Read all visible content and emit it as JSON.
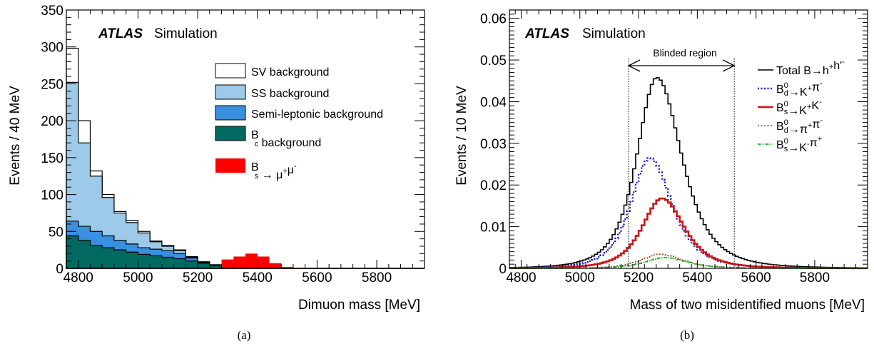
{
  "chart_data": [
    {
      "type": "area",
      "panel_caption": "(a)",
      "atlas_label": "ATLAS",
      "simulation_label": "Simulation",
      "xlabel": "Dimuon mass [MeV]",
      "ylabel": "Events / 40 MeV",
      "xlim": [
        4760,
        5960
      ],
      "ylim": [
        0,
        350
      ],
      "x_ticks": [
        4800,
        5000,
        5200,
        5400,
        5600,
        5800
      ],
      "y_ticks": [
        0,
        50,
        100,
        150,
        200,
        250,
        300,
        350
      ],
      "grid": false,
      "legend_position": "top-right",
      "bin_width": 40,
      "bin_edges_start": 4760,
      "series": [
        {
          "name": "SV background",
          "color": "#ffffff",
          "stacked_total": [
            298,
            200,
            132,
            100,
            77,
            65,
            50,
            37,
            31,
            25,
            16,
            9,
            5,
            3,
            2,
            1,
            1,
            0,
            0,
            0,
            0,
            0,
            0,
            0,
            0,
            0,
            0,
            0,
            0,
            0
          ]
        },
        {
          "name": "SS background",
          "color": "#9ecae9",
          "stacked_total": [
            252,
            170,
            125,
            96,
            75,
            62,
            48,
            36,
            30,
            24,
            15,
            8,
            4,
            3,
            2,
            1,
            1,
            0,
            0,
            0,
            0,
            0,
            0,
            0,
            0,
            0,
            0,
            0,
            0,
            0
          ]
        },
        {
          "name": "Semi-leptonic background",
          "color": "#3a8fe0",
          "stacked_total": [
            64,
            57,
            50,
            44,
            38,
            33,
            28,
            26,
            24,
            20,
            14,
            8,
            4,
            3,
            2,
            1,
            1,
            0,
            0,
            0,
            0,
            0,
            0,
            0,
            0,
            0,
            0,
            0,
            0,
            0
          ]
        },
        {
          "name": "B_c background",
          "name_parts": {
            "main": "B",
            "sub": "c",
            "tail": " background"
          },
          "color": "#006a60",
          "stacked_total": [
            44,
            38,
            31,
            28,
            25,
            22,
            19,
            17,
            15,
            13,
            10,
            7,
            4,
            3,
            2,
            1,
            1,
            0,
            0,
            0,
            0,
            0,
            0,
            0,
            0,
            0,
            0,
            0,
            0,
            0
          ]
        },
        {
          "name": "B_s → μ+μ-",
          "name_parts": {
            "main": "B",
            "sub": "s",
            "tail": " → μ",
            "sup1": "+",
            "mid": "μ",
            "sup2": "-"
          },
          "color": "#ff0000",
          "bins": [
            {
              "x": 5280,
              "value": 12
            },
            {
              "x": 5320,
              "value": 16
            },
            {
              "x": 5360,
              "value": 20
            },
            {
              "x": 5400,
              "value": 16
            },
            {
              "x": 5440,
              "value": 7
            },
            {
              "x": 5480,
              "value": 2
            }
          ]
        }
      ]
    },
    {
      "type": "line",
      "panel_caption": "(b)",
      "atlas_label": "ATLAS",
      "simulation_label": "Simulation",
      "xlabel": "Mass of two misidentified muons [MeV]",
      "ylabel": "Events / 10 MeV",
      "xlim": [
        4760,
        5980
      ],
      "ylim": [
        0,
        0.062
      ],
      "x_ticks": [
        4800,
        5000,
        5200,
        5400,
        5600,
        5800
      ],
      "y_ticks": [
        0,
        0.01,
        0.02,
        0.03,
        0.04,
        0.05,
        0.06
      ],
      "y_tick_labels": [
        "0",
        "0.01",
        "0.02",
        "0.03",
        "0.04",
        "0.05",
        "0.06"
      ],
      "grid": false,
      "legend_position": "top-right",
      "blinded_region": {
        "label": "Blinded region",
        "x_range": [
          5166,
          5526
        ]
      },
      "series": [
        {
          "name": "Total B→h+h'-",
          "color": "#000000",
          "dash": "solid",
          "peak_x": 5262,
          "peak_y": 0.0458,
          "sigma_left": 72,
          "sigma_right": 90,
          "tail": 1.4
        },
        {
          "name": "B_d^0→K+π-",
          "color": "#1a1acc",
          "dash": "dot",
          "peak_x": 5238,
          "peak_y": 0.0265,
          "sigma_left": 68,
          "sigma_right": 80,
          "tail": 1.4
        },
        {
          "name": "B_s^0→K+K-",
          "color": "#cc1414",
          "dash": "solid",
          "peak_x": 5280,
          "peak_y": 0.0168,
          "sigma_left": 72,
          "sigma_right": 80,
          "tail": 1.4
        },
        {
          "name": "B_d^0→π+π-",
          "color": "#8b4513",
          "dash": "dot",
          "peak_x": 5275,
          "peak_y": 0.0034,
          "sigma_left": 70,
          "sigma_right": 80,
          "tail": 1.4
        },
        {
          "name": "B_s^0→K-π+",
          "color": "#22aa22",
          "dash": "dashdot",
          "peak_x": 5290,
          "peak_y": 0.0026,
          "sigma_left": 72,
          "sigma_right": 80,
          "tail": 1.4
        }
      ],
      "legend_entries": [
        {
          "parts": [
            {
              "t": "Total B→h"
            },
            {
              "t": "+",
              "sup": true
            },
            {
              "t": "h'"
            },
            {
              "t": "-",
              "sup": true
            }
          ]
        },
        {
          "parts": [
            {
              "t": "B"
            },
            {
              "t": "0",
              "sup": true
            },
            {
              "t": "d",
              "sub": true
            },
            {
              "t": "→K"
            },
            {
              "t": "+",
              "sup": true
            },
            {
              "t": "π"
            },
            {
              "t": "-",
              "sup": true
            }
          ]
        },
        {
          "parts": [
            {
              "t": "B"
            },
            {
              "t": "0",
              "sup": true
            },
            {
              "t": "s",
              "sub": true
            },
            {
              "t": "→K"
            },
            {
              "t": "+",
              "sup": true
            },
            {
              "t": "K"
            },
            {
              "t": "-",
              "sup": true
            }
          ]
        },
        {
          "parts": [
            {
              "t": "B"
            },
            {
              "t": "0",
              "sup": true
            },
            {
              "t": "d",
              "sub": true
            },
            {
              "t": "→π"
            },
            {
              "t": "+",
              "sup": true
            },
            {
              "t": "π"
            },
            {
              "t": "-",
              "sup": true
            }
          ]
        },
        {
          "parts": [
            {
              "t": "B"
            },
            {
              "t": "0",
              "sup": true
            },
            {
              "t": "s",
              "sub": true
            },
            {
              "t": "→K"
            },
            {
              "t": "-",
              "sup": true
            },
            {
              "t": "π"
            },
            {
              "t": "+",
              "sup": true
            }
          ]
        }
      ]
    }
  ]
}
